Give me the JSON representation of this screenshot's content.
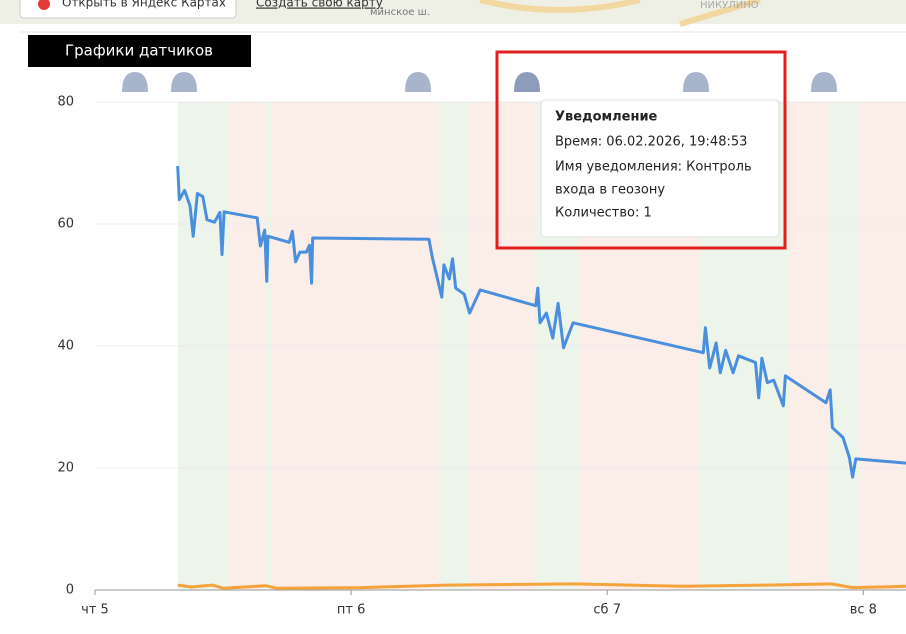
{
  "map_strip": {
    "open_link": "Открыть в Яндекс Картах",
    "create_link": "Создать свою карту",
    "road_label": "минское ш.",
    "district_label": "НИКУЛИНО"
  },
  "tab_title": "Графики датчиков",
  "tooltip": {
    "title": "Уведомление",
    "time": "Время: 06.02.2026, 19:48:53",
    "name_line1": "Имя уведомления: Контроль",
    "name_line2": "входа в геозону",
    "count": "Количество: 1"
  },
  "chart_data": {
    "type": "line",
    "xlim": [
      0,
      76
    ],
    "ylim": [
      0,
      80
    ],
    "xticks": [
      {
        "value": 0,
        "label": "чт 5"
      },
      {
        "value": 24,
        "label": "пт 6"
      },
      {
        "value": 48,
        "label": "сб 7"
      },
      {
        "value": 72,
        "label": "вс 8"
      }
    ],
    "yticks": [
      0,
      20,
      40,
      60,
      80
    ],
    "grid": true,
    "series": [
      {
        "color": "#4a8fdc",
        "x": [
          7.75,
          7.9,
          8.4,
          8.9,
          9.2,
          9.6,
          10.1,
          10.5,
          11.2,
          11.7,
          11.9,
          12.1,
          15.2,
          15.5,
          15.9,
          16.1,
          16.2,
          18.2,
          18.5,
          18.8,
          19.2,
          19.8,
          20.1,
          20.3,
          20.4,
          31.3,
          31.6,
          32.5,
          32.7,
          33.2,
          33.5,
          33.8,
          34.6,
          35.1,
          36.1,
          41.3,
          41.5,
          41.7,
          42.3,
          42.9,
          43.4,
          43.9,
          44.8,
          57,
          57.2,
          57.6,
          58.2,
          58.6,
          59.1,
          59.8,
          60.3,
          61.9,
          62.2,
          62.5,
          63,
          63.6,
          64.5,
          64.7,
          68.5,
          68.9,
          69.1,
          70.1,
          70.7,
          71,
          71.3,
          76
        ],
        "values": [
          69.5,
          64,
          65.5,
          63,
          58,
          65,
          64.5,
          60.7,
          60.3,
          61.9,
          55,
          62,
          61,
          56.4,
          59,
          50.6,
          58,
          57,
          58.8,
          53.8,
          55.4,
          55.4,
          56.5,
          50.3,
          57.7,
          57.5,
          54.6,
          48,
          53.3,
          51,
          54.3,
          49.5,
          48.5,
          45.4,
          49.2,
          46.6,
          49.5,
          43.8,
          45.4,
          41.3,
          47,
          39.7,
          43.8,
          38.9,
          43,
          36.4,
          40.5,
          35.6,
          39.3,
          35.6,
          38.4,
          37.3,
          31.5,
          38,
          34,
          34.4,
          30.2,
          35.1,
          30.7,
          32.8,
          26.6,
          25,
          21.7,
          18.5,
          21.5,
          20.8
        ]
      },
      {
        "color": "#f5a33a",
        "x": [
          7.75,
          9,
          11,
          12,
          16,
          17,
          25,
          33,
          45,
          55,
          63,
          69,
          71,
          76
        ],
        "values": [
          0.8,
          0.5,
          0.8,
          0.3,
          0.7,
          0.3,
          0.4,
          0.8,
          1,
          0.6,
          0.8,
          1,
          0.4,
          0.6
        ]
      }
    ]
  }
}
